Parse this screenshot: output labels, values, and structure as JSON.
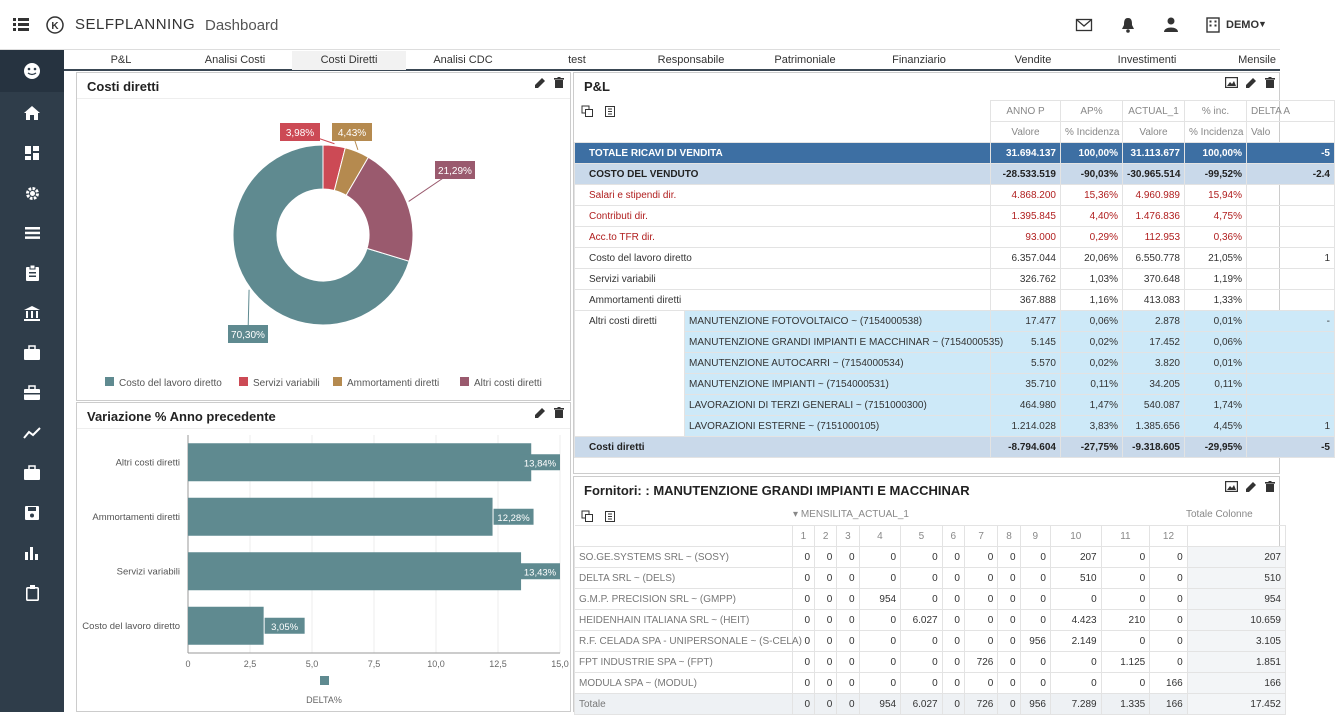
{
  "app": {
    "name": "SELFPLANNING",
    "page": "Dashboard",
    "user": "DEMO"
  },
  "tabs": [
    "P&L",
    "Analisi Costi",
    "Costi Diretti",
    "Analisi CDC",
    "test",
    "Responsabile",
    "Patrimoniale",
    "Finanziario",
    "Vendite",
    "Investimenti",
    "Mensile"
  ],
  "panels": {
    "pie_title": "Costi diretti",
    "bar_title": "Variazione % Anno precedente",
    "pl_title": "P&L",
    "forn_title": "Fornitori: : MANUTENZIONE GRANDI IMPIANTI E MACCHINAR"
  },
  "chart_data": [
    {
      "type": "pie",
      "title": "Costi diretti",
      "series": [
        {
          "name": "Costo del lavoro diretto",
          "value": 70.3,
          "label": "70,30%",
          "color": "#5f8a90"
        },
        {
          "name": "Servizi variabili",
          "value": 3.98,
          "label": "3,98%",
          "color": "#cc4a55"
        },
        {
          "name": "Ammortamenti diretti",
          "value": 4.43,
          "label": "4,43%",
          "color": "#b58a4f"
        },
        {
          "name": "Altri costi diretti",
          "value": 21.29,
          "label": "21,29%",
          "color": "#9a5a6e"
        }
      ]
    },
    {
      "type": "bar",
      "title": "Variazione % Anno precedente",
      "categories": [
        "Altri costi diretti",
        "Ammortamenti diretti",
        "Servizi variabili",
        "Costo del lavoro diretto"
      ],
      "values": [
        13.84,
        12.28,
        13.43,
        3.05
      ],
      "labels": [
        "13,84%",
        "12,28%",
        "13,43%",
        "3,05%"
      ],
      "xticks": [
        "0",
        "2,5",
        "5,0",
        "7,5",
        "10,0",
        "12,5",
        "15,0"
      ],
      "xlim": [
        0,
        15
      ],
      "legend": "DELTA%",
      "color": "#5f8a90"
    }
  ],
  "pl": {
    "col_heads": [
      "ANNO P",
      "AP%",
      "ACTUAL_1",
      "% inc.",
      "DELTA A"
    ],
    "col_subs": [
      "Valore",
      "% Incidenza",
      "Valore",
      "% Incidenza",
      "Valo"
    ],
    "rows": [
      {
        "label": "TOTALE RICAVI DI VENDITA",
        "v": [
          "31.694.137",
          "100,00%",
          "31.113.677",
          "100,00%",
          "-5"
        ]
      },
      {
        "label": "COSTO DEL VENDUTO",
        "v": [
          "-28.533.519",
          "-90,03%",
          "-30.965.514",
          "-99,52%",
          "-2.4"
        ]
      },
      {
        "label": "Salari e stipendi dir.",
        "v": [
          "4.868.200",
          "15,36%",
          "4.960.989",
          "15,94%",
          ""
        ]
      },
      {
        "label": "Contributi dir.",
        "v": [
          "1.395.845",
          "4,40%",
          "1.476.836",
          "4,75%",
          ""
        ]
      },
      {
        "label": "Acc.to TFR dir.",
        "v": [
          "93.000",
          "0,29%",
          "112.953",
          "0,36%",
          ""
        ]
      },
      {
        "label": "Costo del lavoro diretto",
        "v": [
          "6.357.044",
          "20,06%",
          "6.550.778",
          "21,05%",
          "1"
        ]
      },
      {
        "label": "Servizi variabili",
        "v": [
          "326.762",
          "1,03%",
          "370.648",
          "1,19%",
          ""
        ]
      },
      {
        "label": "Ammortamenti diretti",
        "v": [
          "367.888",
          "1,16%",
          "413.083",
          "1,33%",
          ""
        ]
      },
      {
        "label": "Altri costi diretti",
        "sub": "MANUTENZIONE FOTOVOLTAICO ~ (7154000538)",
        "v": [
          "17.477",
          "0,06%",
          "2.878",
          "0,01%",
          "-"
        ]
      },
      {
        "label": "",
        "sub": "MANUTENZIONE GRANDI IMPIANTI E MACCHINAR ~ (7154000535)",
        "v": [
          "5.145",
          "0,02%",
          "17.452",
          "0,06%",
          ""
        ]
      },
      {
        "label": "",
        "sub": "MANUTENZIONE AUTOCARRI ~ (7154000534)",
        "v": [
          "5.570",
          "0,02%",
          "3.820",
          "0,01%",
          ""
        ]
      },
      {
        "label": "",
        "sub": "MANUTENZIONE IMPIANTI ~ (7154000531)",
        "v": [
          "35.710",
          "0,11%",
          "34.205",
          "0,11%",
          ""
        ]
      },
      {
        "label": "",
        "sub": "LAVORAZIONI DI TERZI GENERALI ~ (7151000300)",
        "v": [
          "464.980",
          "1,47%",
          "540.087",
          "1,74%",
          ""
        ]
      },
      {
        "label": "",
        "sub": "LAVORAZIONI ESTERNE ~ (7151000105)",
        "v": [
          "1.214.028",
          "3,83%",
          "1.385.656",
          "4,45%",
          "1"
        ]
      },
      {
        "label": "Costi diretti",
        "v": [
          "-8.794.604",
          "-27,75%",
          "-9.318.605",
          "-29,95%",
          "-5"
        ]
      }
    ]
  },
  "forn": {
    "dim": "MENSILITA_ACTUAL_1",
    "total_head": "Totale Colonne",
    "months": [
      "1",
      "2",
      "3",
      "4",
      "5",
      "6",
      "7",
      "8",
      "9",
      "10",
      "11",
      "12"
    ],
    "rows": [
      {
        "name": "SO.GE.SYSTEMS SRL ~ (SOSY)",
        "v": [
          "0",
          "0",
          "0",
          "0",
          "0",
          "0",
          "0",
          "0",
          "0",
          "207",
          "0",
          "0"
        ],
        "t": "207"
      },
      {
        "name": "DELTA SRL ~ (DELS)",
        "v": [
          "0",
          "0",
          "0",
          "0",
          "0",
          "0",
          "0",
          "0",
          "0",
          "510",
          "0",
          "0"
        ],
        "t": "510"
      },
      {
        "name": "G.M.P. PRECISION SRL ~ (GMPP)",
        "v": [
          "0",
          "0",
          "0",
          "954",
          "0",
          "0",
          "0",
          "0",
          "0",
          "0",
          "0",
          "0"
        ],
        "t": "954"
      },
      {
        "name": "HEIDENHAIN ITALIANA SRL ~ (HEIT)",
        "v": [
          "0",
          "0",
          "0",
          "0",
          "6.027",
          "0",
          "0",
          "0",
          "0",
          "4.423",
          "210",
          "0"
        ],
        "t": "10.659"
      },
      {
        "name": "R.F. CELADA SPA - UNIPERSONALE ~ (S-CELA)",
        "v": [
          "0",
          "0",
          "0",
          "0",
          "0",
          "0",
          "0",
          "0",
          "956",
          "2.149",
          "0",
          "0"
        ],
        "t": "3.105"
      },
      {
        "name": "FPT INDUSTRIE SPA ~ (FPT)",
        "v": [
          "0",
          "0",
          "0",
          "0",
          "0",
          "0",
          "726",
          "0",
          "0",
          "0",
          "1.125",
          "0"
        ],
        "t": "1.851"
      },
      {
        "name": "MODULA SPA ~ (MODUL)",
        "v": [
          "0",
          "0",
          "0",
          "0",
          "0",
          "0",
          "0",
          "0",
          "0",
          "0",
          "0",
          "166"
        ],
        "t": "166"
      },
      {
        "name": "Totale",
        "v": [
          "0",
          "0",
          "0",
          "954",
          "6.027",
          "0",
          "726",
          "0",
          "956",
          "7.289",
          "1.335",
          "166"
        ],
        "t": "17.452"
      }
    ]
  }
}
